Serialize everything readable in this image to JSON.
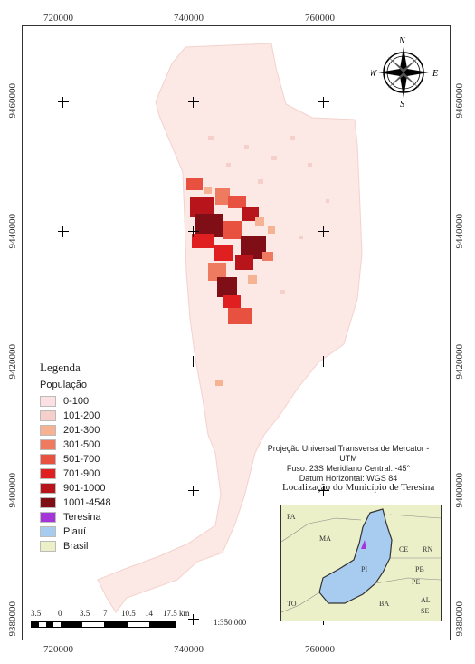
{
  "map": {
    "x_ticks": [
      "720000",
      "740000",
      "760000"
    ],
    "y_ticks": [
      "9460000",
      "9440000",
      "9420000",
      "9400000",
      "9380000"
    ],
    "compass": {
      "n": "N",
      "s": "S",
      "e": "E",
      "w": "W"
    },
    "legend": {
      "title": "Legenda",
      "subtitle": "População",
      "items": [
        {
          "label": "0-100",
          "color": "#fde0e4"
        },
        {
          "label": "101-200",
          "color": "#f5cfc9"
        },
        {
          "label": "201-300",
          "color": "#f6b394"
        },
        {
          "label": "301-500",
          "color": "#ee7a60"
        },
        {
          "label": "501-700",
          "color": "#e8513f"
        },
        {
          "label": "701-900",
          "color": "#e02020"
        },
        {
          "label": "901-1000",
          "color": "#b8141c"
        },
        {
          "label": "1001-4548",
          "color": "#7f0e16"
        },
        {
          "label": "Teresina",
          "color": "#a335d9"
        },
        {
          "label": "Piauí",
          "color": "#a8ccf0"
        },
        {
          "label": "Brasil",
          "color": "#ecf0c8"
        }
      ]
    },
    "projection": {
      "line1": "Projeção Universal Transversa de Mercator - UTM",
      "line2": "Fuso: 23S Meridiano Central: -45°",
      "line3": "Datum Horizontal: WGS 84"
    },
    "location_title": "Localização do Município de Teresina",
    "inset_labels": [
      "PA",
      "MA",
      "PI",
      "CE",
      "RN",
      "PB",
      "PE",
      "TO",
      "BA",
      "AL",
      "SE"
    ],
    "scale": {
      "labels": [
        "3.5",
        "0",
        "3.5",
        "7",
        "10.5",
        "14",
        "17.5 km"
      ],
      "ratio": "1:350.000"
    }
  }
}
